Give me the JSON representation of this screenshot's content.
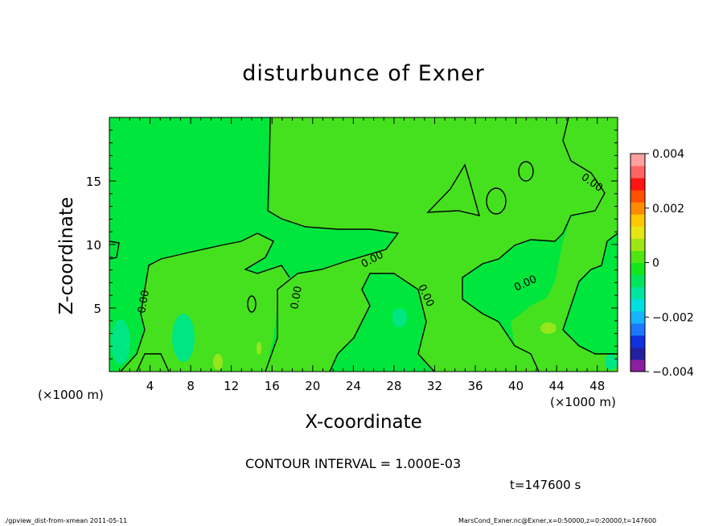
{
  "chart_data": {
    "type": "heatmap",
    "title": "disturbunce of Exner",
    "xlabel": "X-coordinate",
    "ylabel": "Z-coordinate",
    "x_unit_left": "(×1000 m)",
    "x_unit_right": "(×1000 m)",
    "xlim": [
      0,
      50
    ],
    "ylim": [
      0,
      20
    ],
    "x_ticks": [
      4,
      8,
      12,
      16,
      20,
      24,
      28,
      32,
      36,
      40,
      44,
      48
    ],
    "y_ticks": [
      5,
      10,
      15
    ],
    "contour_label": "0.00",
    "contour_interval_text": "CONTOUR INTERVAL = 1.000E-03",
    "time_text": "t=147600 s",
    "colorbar": {
      "min": -0.004,
      "max": 0.004,
      "tick_values": [
        0.004,
        0.002,
        0,
        -0.002,
        -0.004
      ],
      "tick_labels": [
        "0.004",
        "0.002",
        "0",
        "−0.002",
        "−0.004"
      ],
      "colors": [
        "#8c1ea0",
        "#2020a0",
        "#1030e0",
        "#1e78ff",
        "#14b4ff",
        "#00e0e0",
        "#00e6a0",
        "#00e65a",
        "#14e61e",
        "#50e614",
        "#a0e614",
        "#e6e614",
        "#ffc800",
        "#ff8c00",
        "#ff5000",
        "#ff1414",
        "#ff6464",
        "#ffa0a0"
      ]
    },
    "field_colors": {
      "positive": "#46e11e",
      "near_zero": "#00e63c",
      "negative": "#00e682",
      "light_positive": "#96e61e"
    }
  },
  "footer": {
    "left": "./gpview_dist-from-xmean  2011-05-11",
    "right": "MarsCond_Exner.nc@Exner,x=0:50000,z=0:20000,t=147600"
  }
}
